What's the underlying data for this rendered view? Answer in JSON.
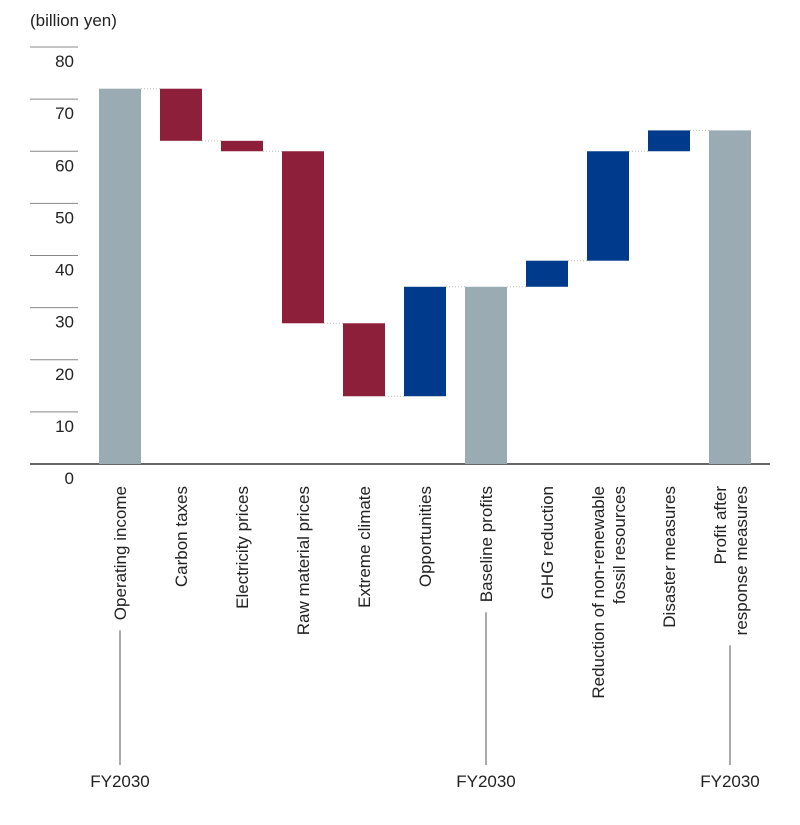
{
  "chart_data": {
    "type": "waterfall",
    "y_label": "(billion yen)",
    "categories": [
      "Operating income",
      "Carbon taxes",
      "Electricity prices",
      "Raw material prices",
      "Extreme climate",
      "Opportunities",
      "Baseline profits",
      "GHG reduction",
      "Reduction of non-renewable\nfossil resources",
      "Disaster measures",
      "Profit after\nresponse measures"
    ],
    "values": [
      72,
      -10,
      -2,
      -33,
      -14,
      21,
      34,
      5,
      21,
      4,
      64
    ],
    "kinds": [
      "total",
      "delta",
      "delta",
      "delta",
      "delta",
      "delta",
      "total",
      "delta",
      "delta",
      "delta",
      "total"
    ],
    "colors": {
      "total": "#9aabb3",
      "decrease": "#8e1f3a",
      "increase": "#003a8c"
    },
    "ylim": [
      0,
      80
    ],
    "yticks": [
      0,
      10,
      20,
      30,
      40,
      50,
      60,
      70,
      80
    ],
    "annotations": [
      {
        "text": "FY2030",
        "category": "Operating income"
      },
      {
        "text": "FY2030",
        "category": "Baseline profits"
      },
      {
        "text": "FY2030",
        "category": "Profit after\nresponse measures"
      }
    ]
  }
}
